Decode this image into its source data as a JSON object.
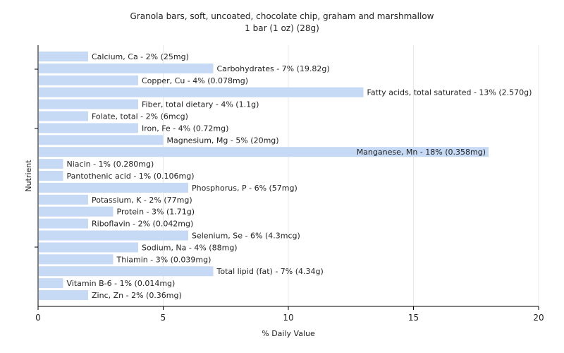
{
  "chart_data": {
    "type": "bar",
    "orientation": "horizontal",
    "title": "Granola bars, soft, uncoated, chocolate chip, graham and marshmallow",
    "subtitle": "1 bar (1 oz) (28g)",
    "xlabel": "% Daily Value",
    "ylabel": "Nutrient",
    "xlim": [
      0,
      20
    ],
    "xticks": [
      "0",
      "5",
      "10",
      "15",
      "20"
    ],
    "grid": "vertical",
    "colors": {
      "bar": "#c7daf5",
      "background": "#ffffff",
      "plot_background": "#ffffff",
      "grid": "#e8e8e8",
      "axis": "#000000"
    },
    "bars": [
      {
        "value": 2,
        "label": "Calcium, Ca - 2% (25mg)"
      },
      {
        "value": 7,
        "label": "Carbohydrates - 7% (19.82g)"
      },
      {
        "value": 4,
        "label": "Copper, Cu - 4% (0.078mg)"
      },
      {
        "value": 13,
        "label": "Fatty acids, total saturated - 13% (2.570g)"
      },
      {
        "value": 4,
        "label": "Fiber, total dietary - 4% (1.1g)"
      },
      {
        "value": 2,
        "label": "Folate, total - 2% (6mcg)"
      },
      {
        "value": 4,
        "label": "Iron, Fe - 4% (0.72mg)"
      },
      {
        "value": 5,
        "label": "Magnesium, Mg - 5% (20mg)"
      },
      {
        "value": 18,
        "label": "Manganese, Mn - 18% (0.358mg)"
      },
      {
        "value": 1,
        "label": "Niacin - 1% (0.280mg)"
      },
      {
        "value": 1,
        "label": "Pantothenic acid - 1% (0.106mg)"
      },
      {
        "value": 6,
        "label": "Phosphorus, P - 6% (57mg)"
      },
      {
        "value": 2,
        "label": "Potassium, K - 2% (77mg)"
      },
      {
        "value": 3,
        "label": "Protein - 3% (1.71g)"
      },
      {
        "value": 2,
        "label": "Riboflavin - 2% (0.042mg)"
      },
      {
        "value": 6,
        "label": "Selenium, Se - 6% (4.3mcg)"
      },
      {
        "value": 4,
        "label": "Sodium, Na - 4% (88mg)"
      },
      {
        "value": 3,
        "label": "Thiamin - 3% (0.039mg)"
      },
      {
        "value": 7,
        "label": "Total lipid (fat) - 7% (4.34g)"
      },
      {
        "value": 1,
        "label": "Vitamin B-6 - 1% (0.014mg)"
      },
      {
        "value": 2,
        "label": "Zinc, Zn - 2% (0.36mg)"
      }
    ]
  }
}
